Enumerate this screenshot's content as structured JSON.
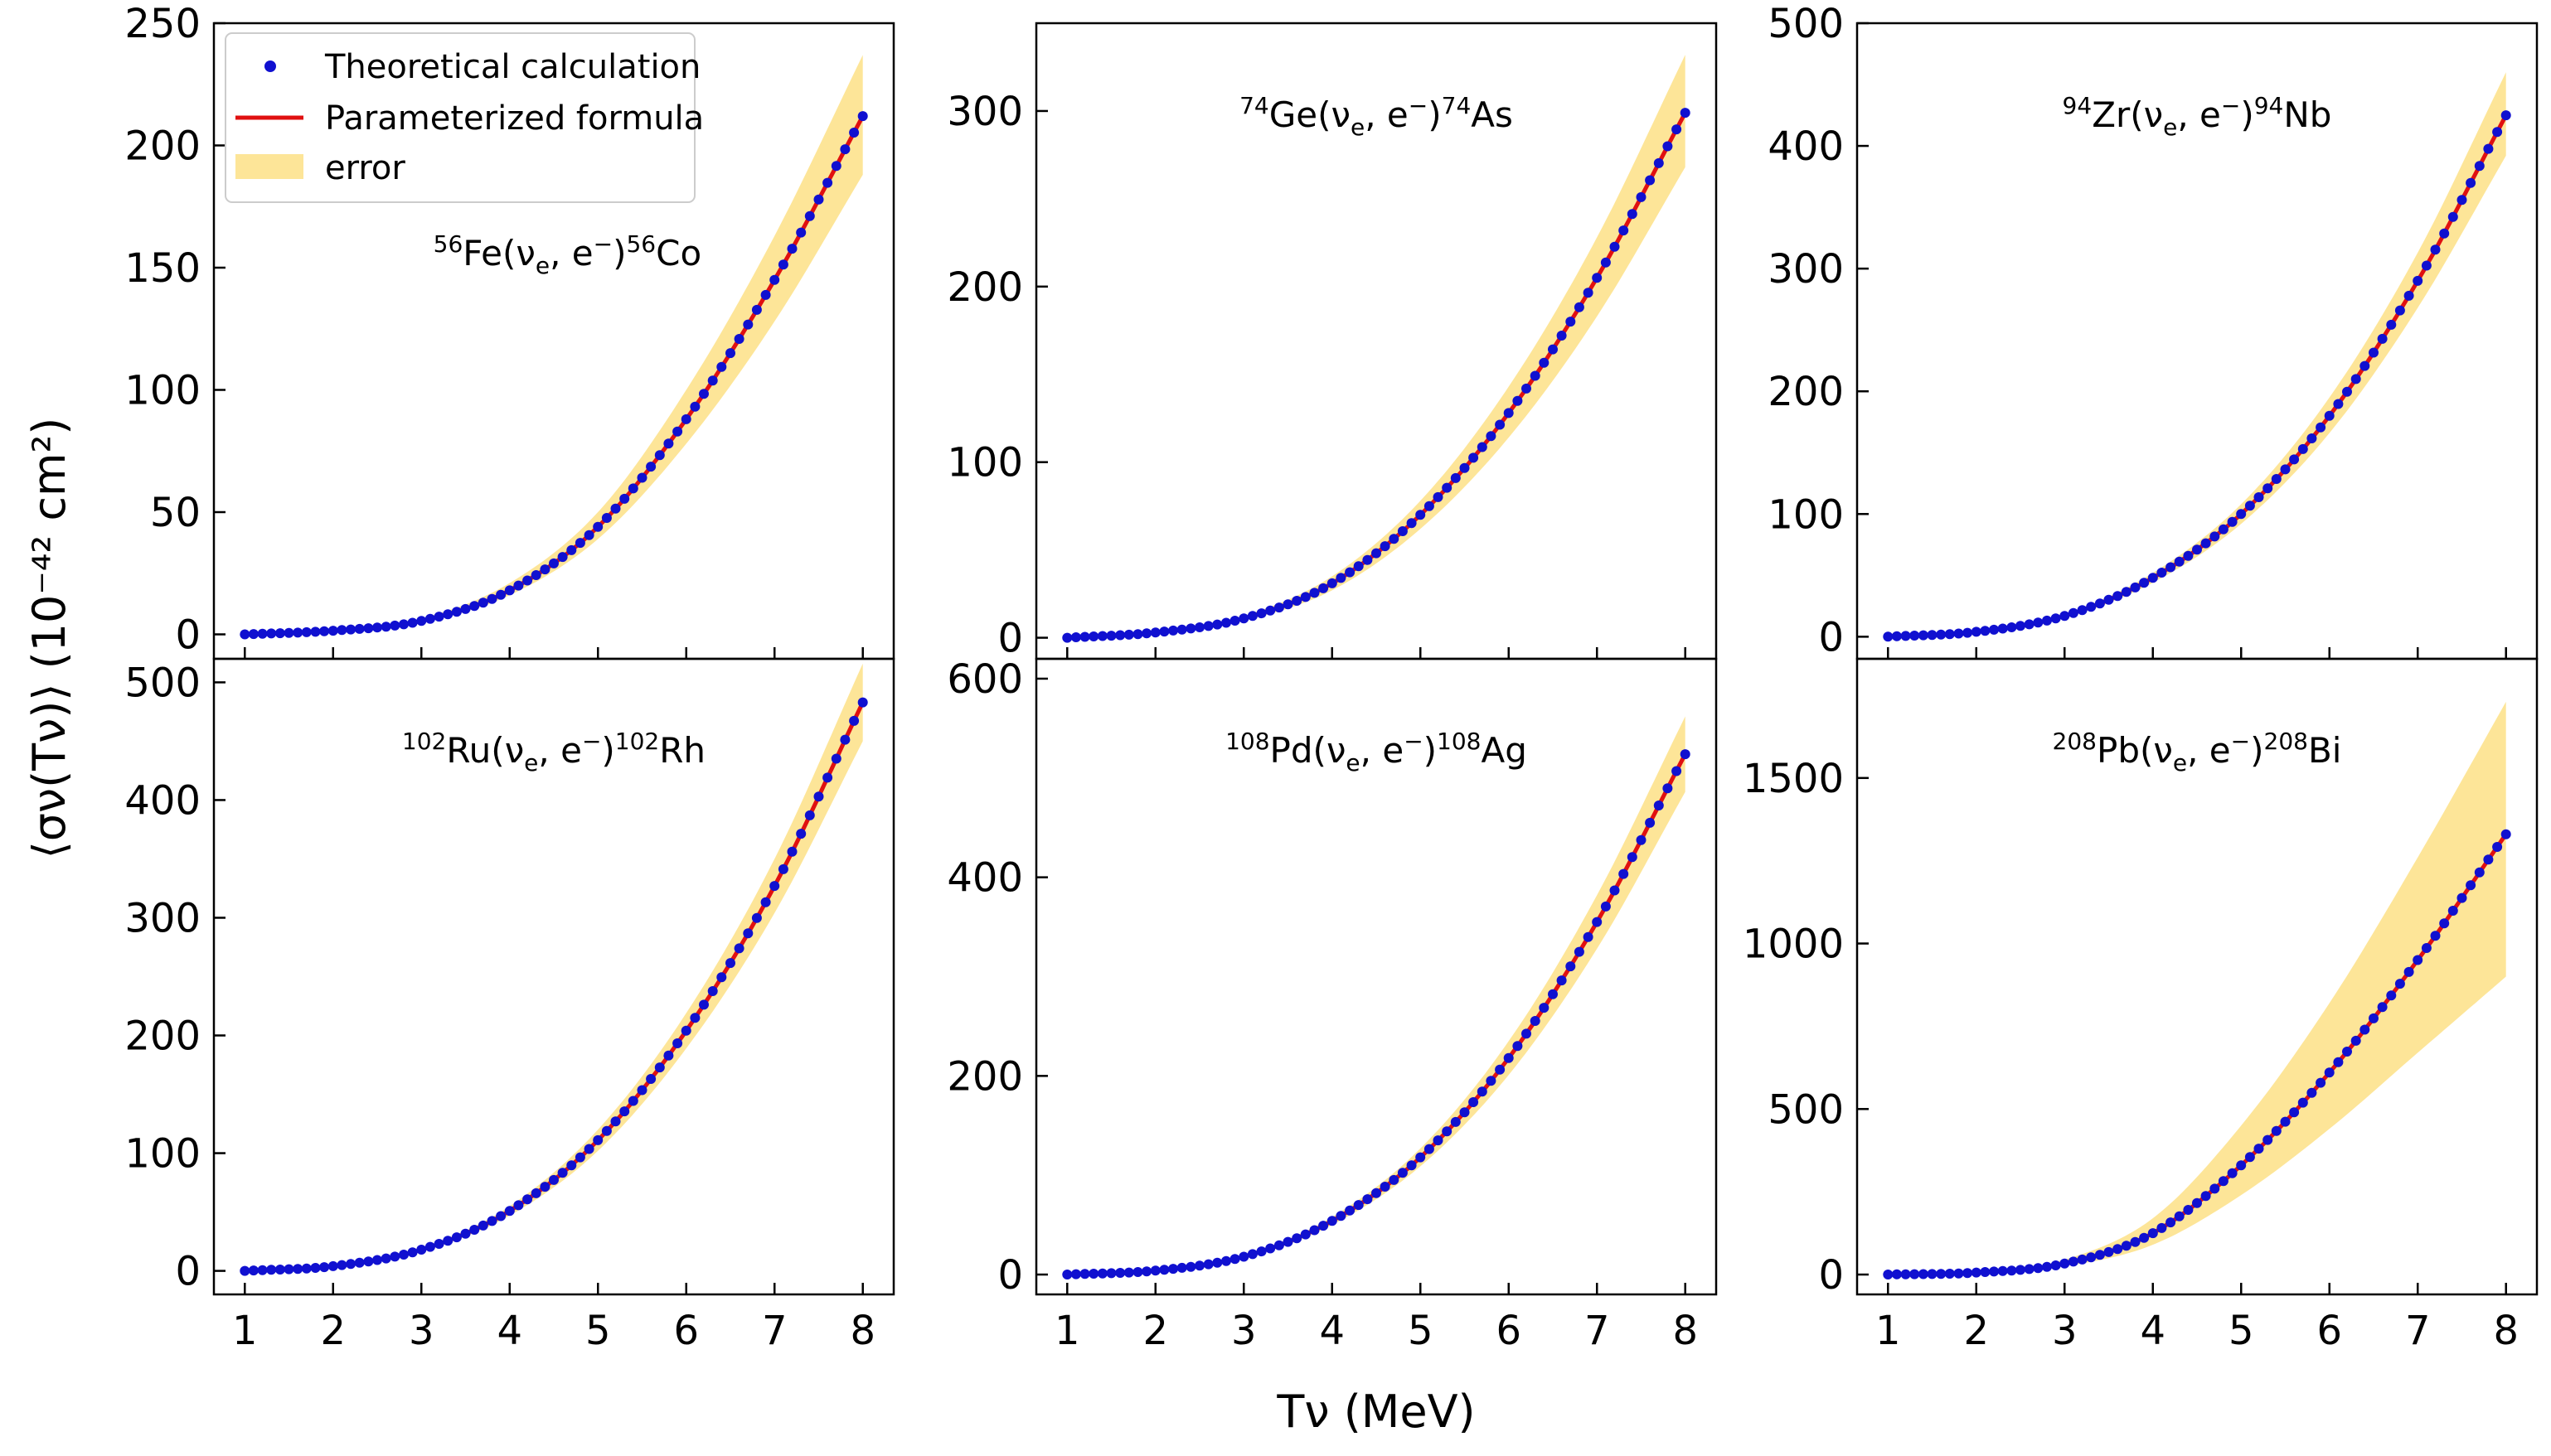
{
  "figure": {
    "ylabel": "⟨σν(Tν)⟩ (10⁻⁴² cm²)",
    "xlabel": "Tν (MeV)"
  },
  "legend": {
    "location": "upper left of first panel",
    "entries": [
      {
        "label": "Theoretical calculation",
        "kind": "points",
        "color": "#1010d0"
      },
      {
        "label": "Parameterized formula",
        "kind": "line",
        "color": "#e01010"
      },
      {
        "label": "error",
        "kind": "band",
        "color": "#fde598"
      }
    ]
  },
  "chart_data": [
    {
      "type": "line",
      "reaction": {
        "a": "56",
        "target": "Fe",
        "prob": "ν",
        "probsub": "e",
        "lep": "e",
        "lepsup": "−",
        "b": "56",
        "product": "Co"
      },
      "x": [
        1,
        2,
        3,
        4,
        5,
        6,
        7,
        8
      ],
      "xlim": [
        0.65,
        8.35
      ],
      "xticks": [
        1,
        2,
        3,
        4,
        5,
        6,
        7,
        8
      ],
      "ylim": [
        -10,
        250
      ],
      "yticks": [
        0,
        50,
        100,
        150,
        200,
        250
      ],
      "series": [
        {
          "name": "Theoretical calculation",
          "values": [
            0,
            1.5,
            5.5,
            18,
            44,
            88,
            145,
            212
          ]
        },
        {
          "name": "Parameterized formula",
          "values": [
            0,
            1.5,
            5.5,
            18,
            44,
            88,
            145,
            212
          ]
        },
        {
          "name": "error (upper)",
          "values": [
            0,
            1.6,
            6.5,
            21,
            50,
            100,
            163,
            237
          ]
        },
        {
          "name": "error (lower)",
          "values": [
            0,
            1.4,
            5,
            16,
            39,
            78,
            128,
            188
          ]
        }
      ]
    },
    {
      "type": "line",
      "reaction": {
        "a": "74",
        "target": "Ge",
        "prob": "ν",
        "probsub": "e",
        "lep": "e",
        "lepsup": "−",
        "b": "74",
        "product": "As"
      },
      "x": [
        1,
        2,
        3,
        4,
        5,
        6,
        7,
        8
      ],
      "xlim": [
        0.65,
        8.35
      ],
      "xticks": [
        1,
        2,
        3,
        4,
        5,
        6,
        7,
        8
      ],
      "ylim": [
        -12,
        350
      ],
      "yticks": [
        0,
        100,
        200,
        300
      ],
      "series": [
        {
          "name": "Theoretical calculation",
          "values": [
            0,
            3,
            11,
            31,
            70,
            128,
            205,
            299
          ]
        },
        {
          "name": "Parameterized formula",
          "values": [
            0,
            3,
            11,
            31,
            70,
            128,
            205,
            299
          ]
        },
        {
          "name": "error (upper)",
          "values": [
            0,
            3.3,
            12.5,
            35,
            78,
            143,
            228,
            332
          ]
        },
        {
          "name": "error (lower)",
          "values": [
            0,
            2.7,
            9.8,
            27,
            62,
            114,
            183,
            268
          ]
        }
      ]
    },
    {
      "type": "line",
      "reaction": {
        "a": "94",
        "target": "Zr",
        "prob": "ν",
        "probsub": "e",
        "lep": "e",
        "lepsup": "−",
        "b": "94",
        "product": "Nb"
      },
      "x": [
        1,
        2,
        3,
        4,
        5,
        6,
        7,
        8
      ],
      "xlim": [
        0.65,
        8.35
      ],
      "xticks": [
        1,
        2,
        3,
        4,
        5,
        6,
        7,
        8
      ],
      "ylim": [
        -18,
        500
      ],
      "yticks": [
        0,
        100,
        200,
        300,
        400,
        500
      ],
      "series": [
        {
          "name": "Theoretical calculation",
          "values": [
            0,
            4,
            17,
            48,
            100,
            180,
            290,
            425
          ]
        },
        {
          "name": "Parameterized formula",
          "values": [
            0,
            4,
            17,
            48,
            100,
            180,
            290,
            425
          ]
        },
        {
          "name": "error (upper)",
          "values": [
            0,
            4.3,
            18.5,
            52,
            108,
            195,
            313,
            460
          ]
        },
        {
          "name": "error (lower)",
          "values": [
            0,
            3.7,
            15.5,
            44,
            92,
            166,
            268,
            392
          ]
        }
      ]
    },
    {
      "type": "line",
      "reaction": {
        "a": "102",
        "target": "Ru",
        "prob": "ν",
        "probsub": "e",
        "lep": "e",
        "lepsup": "−",
        "b": "102",
        "product": "Rh"
      },
      "x": [
        1,
        2,
        3,
        4,
        5,
        6,
        7,
        8
      ],
      "xlim": [
        0.65,
        8.35
      ],
      "xticks": [
        1,
        2,
        3,
        4,
        5,
        6,
        7,
        8
      ],
      "ylim": [
        -20,
        520
      ],
      "yticks": [
        0,
        100,
        200,
        300,
        400,
        500
      ],
      "series": [
        {
          "name": "Theoretical calculation",
          "values": [
            0,
            4,
            18,
            51,
            111,
            204,
            327,
            483
          ]
        },
        {
          "name": "Parameterized formula",
          "values": [
            0,
            4,
            18,
            51,
            111,
            204,
            327,
            483
          ]
        },
        {
          "name": "error (upper)",
          "values": [
            0,
            4.3,
            19.5,
            55,
            120,
            219,
            350,
            516
          ]
        },
        {
          "name": "error (lower)",
          "values": [
            0,
            3.7,
            16.5,
            47,
            102,
            189,
            304,
            450
          ]
        }
      ]
    },
    {
      "type": "line",
      "reaction": {
        "a": "108",
        "target": "Pd",
        "prob": "ν",
        "probsub": "e",
        "lep": "e",
        "lepsup": "−",
        "b": "108",
        "product": "Ag"
      },
      "x": [
        1,
        2,
        3,
        4,
        5,
        6,
        7,
        8
      ],
      "xlim": [
        0.65,
        8.35
      ],
      "xticks": [
        1,
        2,
        3,
        4,
        5,
        6,
        7,
        8
      ],
      "ylim": [
        -20,
        620
      ],
      "yticks": [
        0,
        200,
        400,
        600
      ],
      "series": [
        {
          "name": "Theoretical calculation",
          "values": [
            0,
            4,
            18,
            54,
            118,
            218,
            355,
            524
          ]
        },
        {
          "name": "Parameterized formula",
          "values": [
            0,
            4,
            18,
            54,
            118,
            218,
            355,
            524
          ]
        },
        {
          "name": "error (upper)",
          "values": [
            0,
            4.3,
            19.5,
            58,
            127,
            235,
            382,
            562
          ]
        },
        {
          "name": "error (lower)",
          "values": [
            0,
            3.7,
            16.5,
            50,
            109,
            201,
            328,
            486
          ]
        }
      ]
    },
    {
      "type": "line",
      "reaction": {
        "a": "208",
        "target": "Pb",
        "prob": "ν",
        "probsub": "e",
        "lep": "e",
        "lepsup": "−",
        "b": "208",
        "product": "Bi"
      },
      "x": [
        1,
        2,
        3,
        4,
        5,
        6,
        7,
        8
      ],
      "xlim": [
        0.65,
        8.35
      ],
      "xticks": [
        1,
        2,
        3,
        4,
        5,
        6,
        7,
        8
      ],
      "ylim": [
        -60,
        1860
      ],
      "yticks": [
        0,
        500,
        1000,
        1500
      ],
      "series": [
        {
          "name": "Theoretical calculation",
          "values": [
            0,
            6,
            33,
            125,
            330,
            610,
            950,
            1330
          ]
        },
        {
          "name": "Parameterized formula",
          "values": [
            0,
            6,
            33,
            125,
            330,
            610,
            950,
            1330
          ]
        },
        {
          "name": "error (upper)",
          "values": [
            0,
            7,
            45,
            170,
            450,
            820,
            1260,
            1730
          ]
        },
        {
          "name": "error (lower)",
          "values": [
            0,
            5,
            25,
            90,
            240,
            440,
            670,
            900
          ]
        }
      ]
    }
  ]
}
